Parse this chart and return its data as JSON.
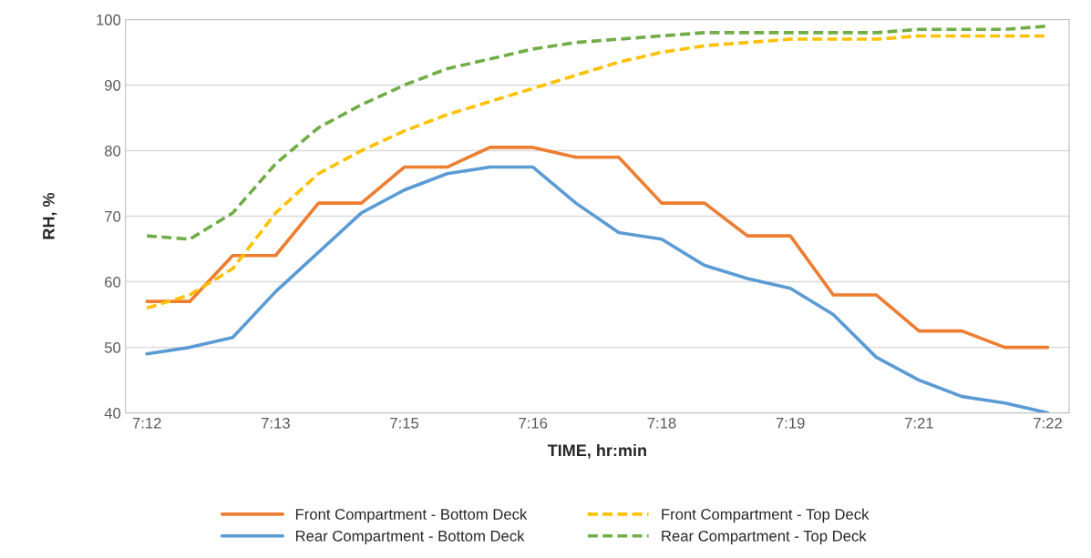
{
  "chart_data": {
    "type": "line",
    "xlabel": "TIME, hr:min",
    "ylabel": "RH, %",
    "categories": [
      "7:12",
      null,
      null,
      "7:13",
      null,
      null,
      "7:15",
      null,
      null,
      "7:16",
      null,
      null,
      "7:18",
      null,
      null,
      "7:19",
      null,
      null,
      "7:21",
      null,
      null,
      "7:22"
    ],
    "series": [
      {
        "name": "Front Compartment - Bottom Deck",
        "color": "#ed7d31",
        "line_style": "solid",
        "values": [
          57,
          57,
          64,
          64,
          72,
          72,
          77.5,
          77.5,
          80.5,
          80.5,
          79,
          79,
          72,
          72,
          67,
          67,
          58,
          58,
          52.5,
          52.5,
          50,
          50
        ]
      },
      {
        "name": "Rear Compartment - Bottom Deck",
        "color": "#5b9bd5",
        "line_style": "solid",
        "values": [
          49,
          50,
          51.5,
          58.5,
          64.5,
          70.5,
          74,
          76.5,
          77.5,
          77.5,
          72,
          67.5,
          66.5,
          62.5,
          60.5,
          59,
          55,
          48.5,
          45,
          42.5,
          41.5,
          40
        ]
      },
      {
        "name": "Front Compartment - Top Deck",
        "color": "#ffc000",
        "line_style": "dashed",
        "values": [
          56,
          58,
          62,
          70.5,
          76.5,
          80,
          83,
          85.5,
          87.5,
          89.5,
          91.5,
          93.5,
          95,
          96,
          96.5,
          97,
          97,
          97,
          97.5,
          97.5,
          97.5,
          97.5
        ]
      },
      {
        "name": "Rear Compartment - Top Deck",
        "color": "#70ad47",
        "line_style": "dashed",
        "values": [
          67,
          66.5,
          70.5,
          78,
          83.5,
          87,
          90,
          92.5,
          94,
          95.5,
          96.5,
          97,
          97.5,
          98,
          98,
          98,
          98,
          98,
          98.5,
          98.5,
          98.5,
          99
        ]
      }
    ],
    "ylim": [
      40,
      100
    ],
    "yticks": [
      40,
      50,
      60,
      70,
      80,
      90,
      100
    ],
    "grid": "y",
    "legend": "bottom"
  }
}
